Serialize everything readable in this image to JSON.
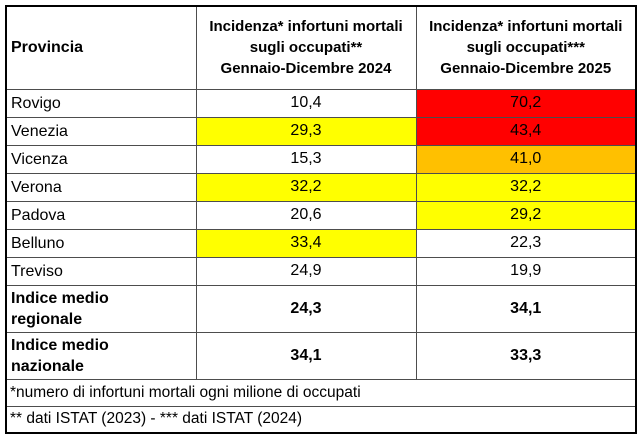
{
  "palette": {
    "red": "#ff0000",
    "yellow": "#ffff00",
    "orange": "#ffc000",
    "white": "#ffffff"
  },
  "table": {
    "header": {
      "col_provincia": "Provincia",
      "col_2024": "Incidenza* infortuni mortali\nsugli occupati**\nGennaio-Dicembre 2024",
      "col_2025": "Incidenza* infortuni mortali\nsugli occupati***\nGennaio-Dicembre 2025"
    },
    "rows": [
      {
        "province": "Rovigo",
        "v2024": "10,4",
        "c2024": "white",
        "v2025": "70,2",
        "c2025": "red"
      },
      {
        "province": "Venezia",
        "v2024": "29,3",
        "c2024": "yellow",
        "v2025": "43,4",
        "c2025": "red"
      },
      {
        "province": "Vicenza",
        "v2024": "15,3",
        "c2024": "white",
        "v2025": "41,0",
        "c2025": "orange"
      },
      {
        "province": "Verona",
        "v2024": "32,2",
        "c2024": "yellow",
        "v2025": "32,2",
        "c2025": "yellow"
      },
      {
        "province": "Padova",
        "v2024": "20,6",
        "c2024": "white",
        "v2025": "29,2",
        "c2025": "yellow"
      },
      {
        "province": "Belluno",
        "v2024": "33,4",
        "c2024": "yellow",
        "v2025": "22,3",
        "c2025": "white"
      },
      {
        "province": "Treviso",
        "v2024": "24,9",
        "c2024": "white",
        "v2025": "19,9",
        "c2025": "white"
      }
    ],
    "index_rows": [
      {
        "label": "Indice medio\nregionale",
        "v2024": "24,3",
        "v2025": "34,1"
      },
      {
        "label": "Indice medio\nnazionale",
        "v2024": "34,1",
        "v2025": "33,3"
      }
    ],
    "notes": [
      "*numero di infortuni mortali ogni milione di occupati",
      "** dati ISTAT (2023) - *** dati ISTAT (2024)"
    ]
  },
  "chart_data": {
    "type": "table",
    "columns": [
      "Provincia",
      "Incidenza* infortuni mortali sugli occupati** Gennaio-Dicembre 2024",
      "Incidenza* infortuni mortali sugli occupati*** Gennaio-Dicembre 2025"
    ],
    "rows": [
      {
        "provincia": "Rovigo",
        "incidenza_2024": 10.4,
        "incidenza_2025": 70.2,
        "highlight_2024": null,
        "highlight_2025": "red"
      },
      {
        "provincia": "Venezia",
        "incidenza_2024": 29.3,
        "incidenza_2025": 43.4,
        "highlight_2024": "yellow",
        "highlight_2025": "red"
      },
      {
        "provincia": "Vicenza",
        "incidenza_2024": 15.3,
        "incidenza_2025": 41.0,
        "highlight_2024": null,
        "highlight_2025": "orange"
      },
      {
        "provincia": "Verona",
        "incidenza_2024": 32.2,
        "incidenza_2025": 32.2,
        "highlight_2024": "yellow",
        "highlight_2025": "yellow"
      },
      {
        "provincia": "Padova",
        "incidenza_2024": 20.6,
        "incidenza_2025": 29.2,
        "highlight_2024": null,
        "highlight_2025": "yellow"
      },
      {
        "provincia": "Belluno",
        "incidenza_2024": 33.4,
        "incidenza_2025": 22.3,
        "highlight_2024": "yellow",
        "highlight_2025": null
      },
      {
        "provincia": "Treviso",
        "incidenza_2024": 24.9,
        "incidenza_2025": 19.9,
        "highlight_2024": null,
        "highlight_2025": null
      },
      {
        "provincia": "Indice medio regionale",
        "incidenza_2024": 24.3,
        "incidenza_2025": 34.1,
        "highlight_2024": null,
        "highlight_2025": null
      },
      {
        "provincia": "Indice medio nazionale",
        "incidenza_2024": 34.1,
        "incidenza_2025": 33.3,
        "highlight_2024": null,
        "highlight_2025": null
      }
    ],
    "notes": [
      "*numero di infortuni mortali ogni milione di occupati",
      "** dati ISTAT (2023) - *** dati ISTAT (2024)"
    ]
  }
}
